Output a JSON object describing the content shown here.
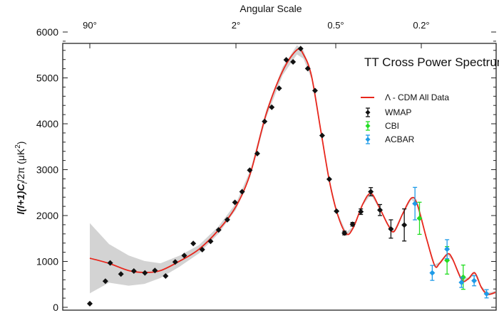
{
  "chart_data": {
    "type": "scatter",
    "title": "TT Cross Power Spectrum",
    "top_axis_label": "Angular Scale",
    "top_ticks": [
      {
        "label": "90°",
        "l": 2
      },
      {
        "label": "2°",
        "l": 90
      },
      {
        "label": "0.5°",
        "l": 360
      },
      {
        "label": "0.2°",
        "l": 900
      }
    ],
    "ylabel": "l(l+1)C_l/2π (μK²)",
    "ylabel_parts": {
      "a": "l(l+1)C",
      "sub": "l",
      "b": "/2π (μK",
      "sup": "2",
      "c": ")"
    },
    "ylim": [
      0,
      6000
    ],
    "yticks": [
      "0",
      "1000",
      "2000",
      "3000",
      "4000",
      "5000",
      "6000"
    ],
    "legend_position": "top-right",
    "colors": {
      "model": "#e8261c",
      "band": "#d3d3d3",
      "WMAP": "#111111",
      "CBI": "#22dd22",
      "ACBAR": "#1e9be8"
    },
    "model": {
      "name": "Λ - CDM All Data",
      "l": [
        2,
        3.3,
        5.5,
        8.3,
        12.6,
        20.8,
        34.4,
        56.8,
        90,
        110,
        137,
        172,
        210,
        230,
        257,
        294,
        329,
        366,
        403,
        434,
        481,
        524,
        571,
        632,
        673,
        738,
        809,
        861,
        955,
        1040,
        1094,
        1192,
        1256,
        1390,
        1489,
        1596,
        1710,
        1828,
        1991
      ],
      "y": [
        1070,
        957,
        800,
        760,
        800,
        1008,
        1267,
        1680,
        2198,
        2922,
        4215,
        5146,
        5612,
        5508,
        5043,
        3801,
        2767,
        2043,
        1603,
        1733,
        2250,
        2482,
        2198,
        1784,
        1655,
        2043,
        2379,
        2250,
        1474,
        905,
        957,
        1164,
        1060,
        595,
        621,
        750,
        440,
        284,
        326
      ],
      "band": [
        765,
        420,
        330,
        250,
        160,
        120,
        90,
        80,
        70,
        70,
        80,
        90,
        100,
        90,
        70,
        50,
        40,
        30,
        30,
        30,
        30,
        30,
        30,
        30,
        30,
        30,
        30,
        30,
        30,
        30,
        30,
        30,
        30,
        30,
        30,
        30,
        30,
        30,
        30
      ]
    },
    "series": [
      {
        "name": "WMAP",
        "l": [
          2,
          3,
          3.4,
          4.5,
          6.3,
          8.4,
          10.9,
          14.4,
          18.5,
          23.4,
          29.6,
          37.4,
          46.5,
          57.3,
          71.8,
          87.7,
          98,
          109,
          121,
          134,
          148,
          164,
          181,
          199,
          221,
          244,
          270,
          298,
          329,
          363,
          395,
          431,
          471,
          524,
          578,
          650,
          750
        ],
        "y": [
          80,
          570,
          967,
          724,
          791,
          750,
          802,
          683,
          988,
          1128,
          1391,
          1257,
          1438,
          1686,
          1908,
          2286,
          2519,
          2989,
          3351,
          4050,
          4360,
          4774,
          5394,
          5348,
          5638,
          5203,
          4722,
          3745,
          2793,
          2095,
          1619,
          1810,
          2084,
          2519,
          2120,
          1707,
          1795
        ],
        "err": [
          0,
          0,
          0,
          0,
          0,
          0,
          0,
          0,
          0,
          0,
          0,
          0,
          0,
          0,
          0,
          0,
          0,
          0,
          0,
          0,
          0,
          0,
          0,
          0,
          0,
          0,
          0,
          0,
          0,
          0,
          40,
          40,
          60,
          90,
          120,
          200,
          350
        ]
      },
      {
        "name": "CBI",
        "l": [
          883,
          1186,
          1410
        ],
        "y": [
          1940,
          1024,
          657
        ],
        "err": [
          350,
          300,
          264
        ]
      },
      {
        "name": "ACBAR",
        "l": [
          841,
          1012,
          1186,
          1384,
          1585,
          1811
        ],
        "y": [
          2260,
          750,
          1267,
          543,
          579,
          295
        ],
        "err": [
          354,
          163,
          207,
          110,
          110,
          90
        ]
      }
    ]
  }
}
